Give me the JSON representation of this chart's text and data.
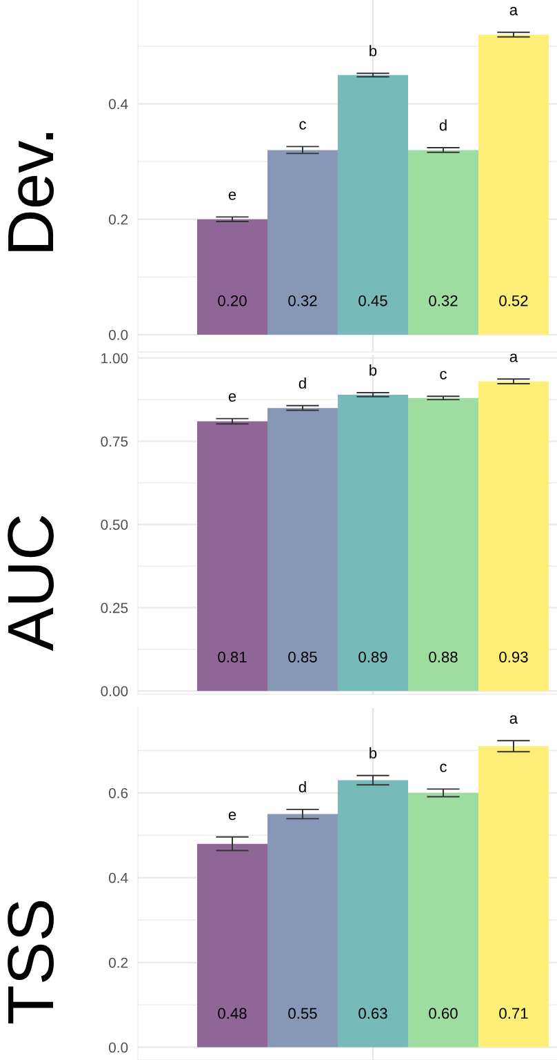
{
  "chart_data": [
    {
      "type": "bar",
      "ylabel": "Dev.",
      "categories": [
        null,
        null,
        null,
        null,
        null
      ],
      "values": [
        0.2,
        0.32,
        0.45,
        0.32,
        0.52
      ],
      "errors": [
        0.004,
        0.006,
        0.003,
        0.004,
        0.004
      ],
      "colors": [
        "#8f6797",
        "#8798b6",
        "#76bab9",
        "#9edca0",
        "#fdee78"
      ],
      "value_labels": [
        "0.20",
        "0.32",
        "0.45",
        "0.32",
        "0.52"
      ],
      "annotations": [
        "e",
        "c",
        "b",
        "d",
        "a"
      ],
      "ylim": [
        -0.03,
        0.58
      ],
      "yticks": [
        {
          "value": 0,
          "label": "0.0"
        },
        {
          "value": 0.1,
          "label": null
        },
        0.2,
        {
          "value": 0.3,
          "label": null
        },
        0.4,
        {
          "value": 0.5,
          "label": null
        }
      ],
      "grid": "y",
      "tick_labels": "y"
    },
    {
      "type": "bar",
      "ylabel": "AUC",
      "categories": [
        null,
        null,
        null,
        null,
        null
      ],
      "values": [
        0.81,
        0.85,
        0.89,
        0.88,
        0.93
      ],
      "errors": [
        0.008,
        0.007,
        0.006,
        0.005,
        0.007
      ],
      "colors": [
        "#8f6797",
        "#8798b6",
        "#76bab9",
        "#9edca0",
        "#fdee78"
      ],
      "value_labels": [
        "0.81",
        "0.85",
        "0.89",
        "0.88",
        "0.93"
      ],
      "annotations": [
        "e",
        "d",
        "b",
        "c",
        "a"
      ],
      "ylim": [
        -0.01,
        1.01
      ],
      "yticks": [
        {
          "value": 0,
          "label": "0.00"
        },
        {
          "value": 0.125,
          "label": null
        },
        0.25,
        {
          "value": 0.375,
          "label": null
        },
        {
          "value": 0.5,
          "label": "0.50"
        },
        {
          "value": 0.625,
          "label": null
        },
        0.75,
        {
          "value": 0.875,
          "label": null
        },
        {
          "value": 1,
          "label": "1.00"
        }
      ],
      "grid": "y",
      "tick_labels": "y"
    },
    {
      "type": "bar",
      "ylabel": "TSS",
      "categories": [
        null,
        null,
        null,
        null,
        null
      ],
      "values": [
        0.48,
        0.55,
        0.63,
        0.6,
        0.71
      ],
      "errors": [
        0.016,
        0.011,
        0.011,
        0.009,
        0.013
      ],
      "colors": [
        "#8f6797",
        "#8798b6",
        "#76bab9",
        "#9edca0",
        "#fdee78"
      ],
      "value_labels": [
        "0.48",
        "0.55",
        "0.63",
        "0.60",
        "0.71"
      ],
      "annotations": [
        "e",
        "d",
        "b",
        "c",
        "a"
      ],
      "ylim": [
        -0.03,
        0.8
      ],
      "yticks": [
        {
          "value": 0,
          "label": "0.0"
        },
        {
          "value": 0.1,
          "label": null
        },
        0.2,
        {
          "value": 0.3,
          "label": null
        },
        0.4,
        {
          "value": 0.5,
          "label": null
        },
        0.6,
        {
          "value": 0.7,
          "label": null
        }
      ],
      "grid": "y",
      "tick_labels": "y"
    }
  ]
}
